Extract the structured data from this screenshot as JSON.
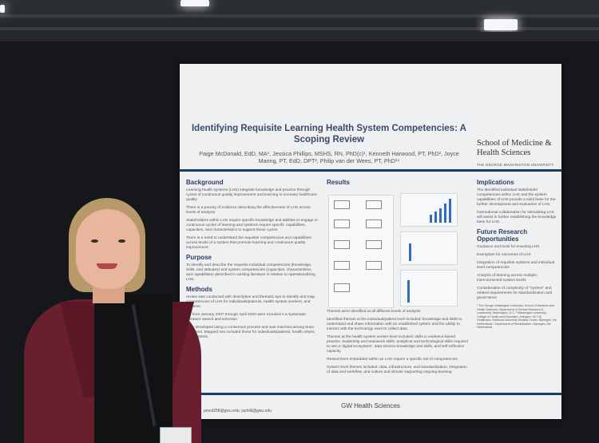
{
  "poster": {
    "title": "Identifying Requisite Learning Health System Competencies: A Scoping Review",
    "authors": "Paige McDonald, EdD, MA¹, Jessica Phillips, MSHS, RN, PhD(c)¹, Kenneth Harwood, PT, PhD², Joyce Maring, PT, EdD, DPT², Philip van der Wees, PT, PhD³⁴",
    "school": "School of Medicine & Health Sciences",
    "school_sub": "THE GEORGE WASHINGTON UNIVERSITY",
    "background_heading": "Background",
    "background_items": [
      "Learning health systems (LHS) integrate knowledge and practice through cycles of continuous quality improvement and learning to increase healthcare quality",
      "There is a paucity of evidence describing the effectiveness of LHS across levels of analysis",
      "Stakeholders within LHS require specific knowledge and abilities to engage in continuous cycles of learning and systems require specific capabilities, capacities, and characteristics to support these cycles",
      "There is a need to understand the requisite competencies and capabilities across levels of a system that promote learning and continuous quality improvement"
    ],
    "purpose_heading": "Purpose",
    "purpose_text": "To identify and describe the requisite individual competencies (knowledge, skills, and attitudes) and system competencies (capacities, characteristics, and capabilities) described in existing literature in relation to operationalizing LHS.",
    "methods_heading": "Methods",
    "methods_items": [
      "review was conducted with descriptive and thematic eps to identify and map competencies of LHS for individuals/patients, health system workers, and systems.",
      "les from January 2007 through April 2020 were included n a systematic literature search and selection",
      "were developed using a consensus process and was matched among team members. Mapped ries included those for individuals/patients, health orkers, and systems."
    ],
    "results_heading": "Results",
    "results_items": [
      "Themes were identified at all different levels of analysis",
      "Identified themes at the individual/patient level included: knowledge and skills to understand and share information with an established system and the ability to interact with the technology used to collect data",
      "Themes at the health system worker level included: skills in evidence-based practice, leadership and teamwork skills, analytical and technological skills required to use a 'digital ecosystem', data science knowledge and skills, and self-reflective capacity",
      "Researchers embedded within an LHS require a specific set of competencies",
      "System level themes included: data, infrastructure, and standardization, integration of data and workflow, and culture and climate supporting ongoing learning"
    ],
    "implications_heading": "Implications",
    "implications_items": [
      "The identified individual stakeholder competencies within LHS and the system capabilities of LHS provide a solid base for the further development and evaluation of LHS.",
      "International collaboration for stimulating LHS will assist in further establishing the knowledge base for LHS."
    ],
    "future_heading": "Future Research Opportunities",
    "future_items": [
      "Guidance and tools for enacting LHS",
      "Exemplars for outcomes of LHS",
      "Integration of requisite systems and individual level competencies",
      "Analysis of learning across multiple, interconnected system levels",
      "Consideration of complexity of \"system\" and related requirements for standardization and governance"
    ],
    "affiliations": "¹ The George Washington University, School of Medicine and Health Sciences, Department of Clinical Research & Leadership, Washington, D.C. ² Washington University, College of Health and Education, Arlington, VA ³ IQ Healthcare, Radboud University Medical Center, Nijmegen, the Netherlands ⁴ Department of Rehabilitation, Nijmegen, the Netherlands",
    "contact": "pmcd258@gwu.edu; jsphilli@gwu.edu",
    "footer": "GW Health Sciences"
  }
}
